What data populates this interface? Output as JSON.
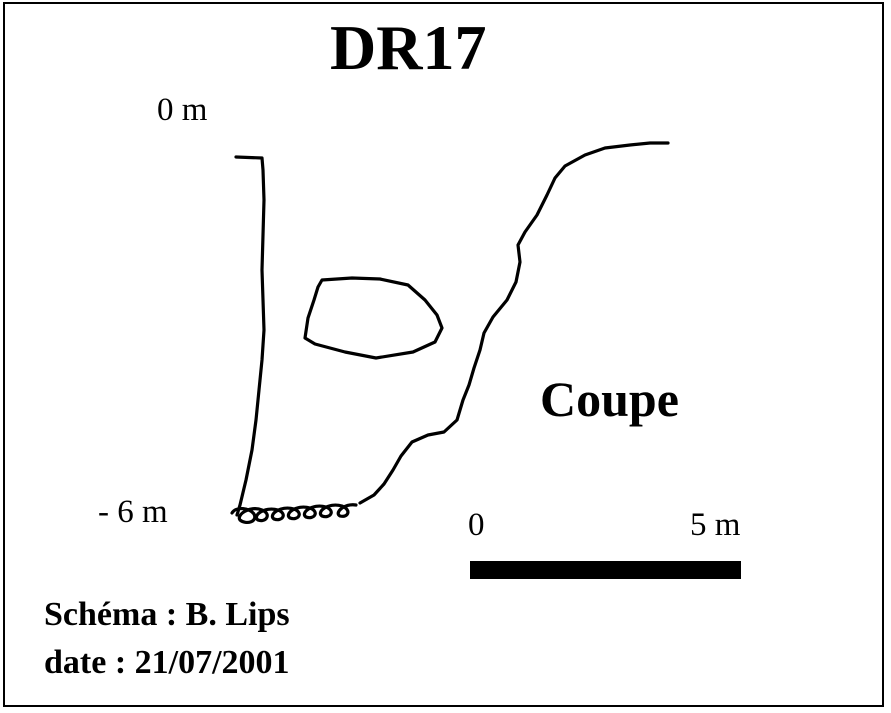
{
  "title": "DR17",
  "depth_labels": {
    "top": "0 m",
    "bottom": "- 6 m"
  },
  "section_label": "Coupe",
  "scale_bar": {
    "start_label": "0",
    "end_label": "5 m",
    "length_m": 5
  },
  "credits": {
    "author_label": "Schéma : ",
    "author": "B. Lips",
    "date_label": "date : ",
    "date": "21/07/2001"
  },
  "colors": {
    "ink": "#000000",
    "background": "#ffffff"
  }
}
